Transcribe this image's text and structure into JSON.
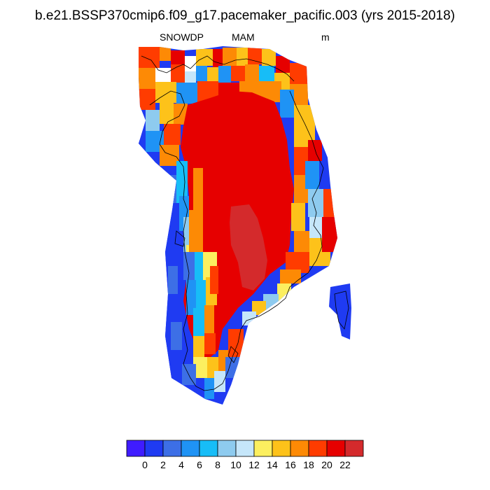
{
  "title": "b.e21.BSSP370cmip6.f09_g17.pacemaker_pacific.003 (yrs 2015-2018)",
  "variable": "SNOWDP",
  "season": "MAM",
  "units": "m",
  "colorbar": {
    "colors": [
      "#3f1cff",
      "#1f3bf2",
      "#3d6fe6",
      "#1f93f5",
      "#17bdf7",
      "#8ecbef",
      "#c5e6fa",
      "#fcef5f",
      "#fdc21a",
      "#fd8a05",
      "#ff3c00",
      "#e60000",
      "#d42a2c"
    ],
    "labels": [
      "0",
      "2",
      "4",
      "6",
      "8",
      "10",
      "12",
      "14",
      "16",
      "18",
      "20",
      "22"
    ]
  }
}
